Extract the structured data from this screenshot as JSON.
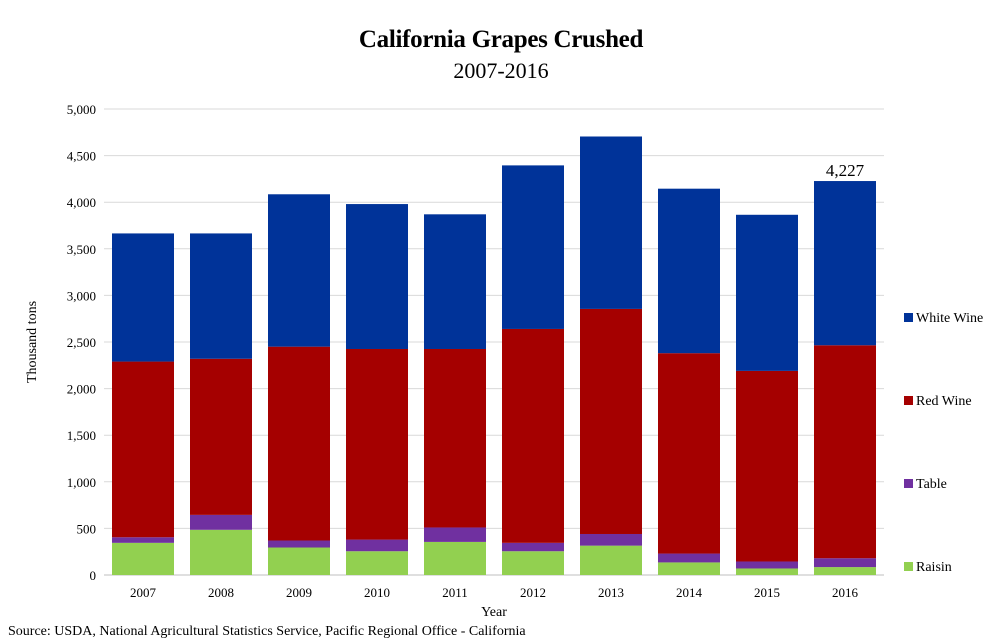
{
  "chart_data": {
    "type": "bar",
    "stacked": true,
    "title": "California Grapes Crushed",
    "subtitle": "2007-2016",
    "xlabel": "Year",
    "ylabel": "Thousand  tons",
    "ylim": [
      0,
      5000
    ],
    "yticks": [
      "0",
      "500",
      "1,000",
      "1,500",
      "2,000",
      "2,500",
      "3,000",
      "3,500",
      "4,000",
      "4,500",
      "5,000"
    ],
    "ytick_values": [
      0,
      500,
      1000,
      1500,
      2000,
      2500,
      3000,
      3500,
      4000,
      4500,
      5000
    ],
    "categories": [
      "2007",
      "2008",
      "2009",
      "2010",
      "2011",
      "2012",
      "2013",
      "2014",
      "2015",
      "2016"
    ],
    "series": [
      {
        "name": "Raisin",
        "color": "#92d050",
        "values": [
          345,
          485,
          295,
          255,
          355,
          255,
          315,
          135,
          70,
          85
        ]
      },
      {
        "name": "Table",
        "color": "#7030a0",
        "values": [
          60,
          160,
          75,
          125,
          155,
          90,
          125,
          95,
          75,
          95
        ]
      },
      {
        "name": "Red Wine",
        "color": "#a50000",
        "values": [
          1885,
          1675,
          2080,
          2045,
          1915,
          2295,
          2415,
          2150,
          2045,
          2285
        ]
      },
      {
        "name": "White Wine",
        "color": "#003399",
        "values": [
          1375,
          1345,
          1635,
          1555,
          1445,
          1755,
          1850,
          1765,
          1675,
          1762
        ]
      }
    ],
    "legend_order": [
      "White Wine",
      "Red Wine",
      "Table",
      "Raisin"
    ],
    "legend_position": "right",
    "annotation": {
      "category": "2016",
      "text": "4,227"
    },
    "grid": true
  },
  "source_note": "Source: USDA, National Agricultural Statistics Service, Pacific Regional Office - California"
}
